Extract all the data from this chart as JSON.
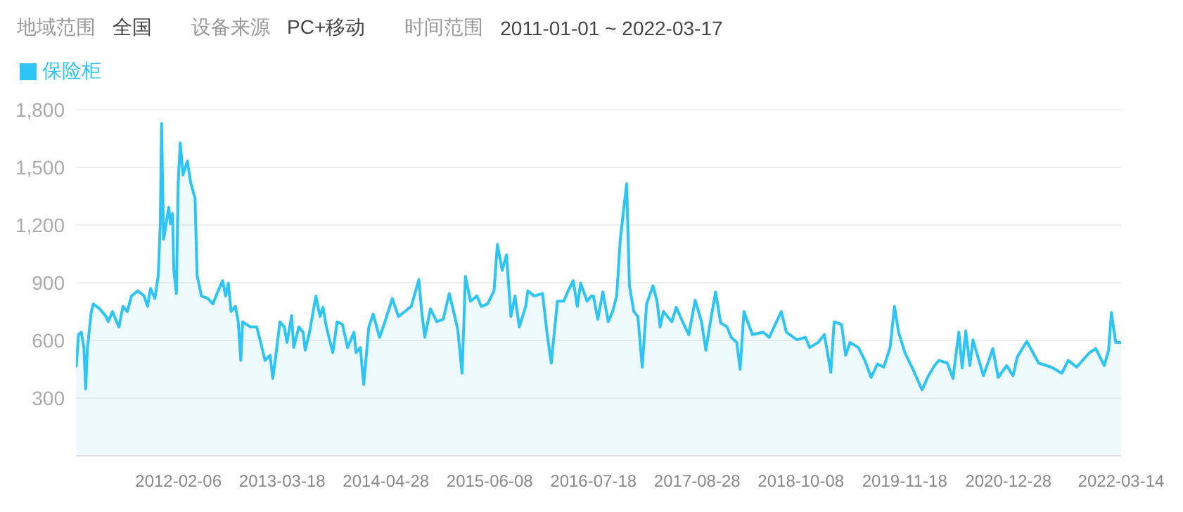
{
  "chart_data": {
    "type": "area",
    "annotations": [
      "地域范围",
      "全国",
      "设备来源",
      "PC+移动",
      "时间范围",
      "2011-01-01 ~ 2022-03-17"
    ],
    "x": [
      "2011-01-02",
      "2011-01-11",
      "2011-01-22",
      "2011-02-01",
      "2011-02-08",
      "2011-02-15",
      "2011-03-02",
      "2011-03-10",
      "2011-04-04",
      "2011-04-29",
      "2011-05-07",
      "2011-05-24",
      "2011-06-18",
      "2011-07-04",
      "2011-07-21",
      "2011-08-06",
      "2011-08-31",
      "2011-09-25",
      "2011-10-08",
      "2011-10-20",
      "2011-11-06",
      "2011-11-19",
      "2011-11-27",
      "2011-12-02",
      "2011-12-10",
      "2011-12-30",
      "2012-01-06",
      "2012-01-14",
      "2012-01-19",
      "2012-01-29",
      "2012-02-05",
      "2012-02-13",
      "2012-02-24",
      "2012-03-12",
      "2012-03-25",
      "2012-04-11",
      "2012-04-19",
      "2012-05-06",
      "2012-05-31",
      "2012-06-20",
      "2012-07-06",
      "2012-07-28",
      "2012-08-09",
      "2012-08-19",
      "2012-08-30",
      "2012-09-16",
      "2012-09-27",
      "2012-10-07",
      "2012-10-14",
      "2012-11-13",
      "2012-12-08",
      "2012-12-24",
      "2013-01-10",
      "2013-01-30",
      "2013-02-09",
      "2013-02-20",
      "2013-03-09",
      "2013-03-26",
      "2013-04-06",
      "2013-04-24",
      "2013-05-02",
      "2013-05-22",
      "2013-06-08",
      "2013-06-16",
      "2013-07-03",
      "2013-07-28",
      "2013-08-13",
      "2013-08-25",
      "2013-09-07",
      "2013-10-02",
      "2013-10-19",
      "2013-11-09",
      "2013-11-29",
      "2013-12-24",
      "2014-01-01",
      "2014-01-18",
      "2014-01-31",
      "2014-02-20",
      "2014-03-09",
      "2014-04-03",
      "2014-04-24",
      "2014-05-23",
      "2014-06-16",
      "2014-07-11",
      "2014-08-05",
      "2014-09-04",
      "2014-09-15",
      "2014-09-27",
      "2014-10-19",
      "2014-11-13",
      "2014-12-08",
      "2015-01-01",
      "2015-01-18",
      "2015-02-03",
      "2015-02-20",
      "2015-03-05",
      "2015-03-25",
      "2015-04-19",
      "2015-05-06",
      "2015-05-31",
      "2015-06-25",
      "2015-07-08",
      "2015-07-27",
      "2015-08-13",
      "2015-08-30",
      "2015-09-15",
      "2015-10-02",
      "2015-10-27",
      "2015-11-04",
      "2015-11-29",
      "2016-01-01",
      "2016-01-18",
      "2016-02-04",
      "2016-02-28",
      "2016-03-24",
      "2016-04-10",
      "2016-04-30",
      "2016-05-16",
      "2016-05-29",
      "2016-06-23",
      "2016-07-10",
      "2016-07-18",
      "2016-08-04",
      "2016-08-24",
      "2016-09-14",
      "2016-10-01",
      "2016-10-17",
      "2016-10-31",
      "2016-11-25",
      "2016-12-06",
      "2016-12-23",
      "2017-01-08",
      "2017-01-25",
      "2017-02-11",
      "2017-03-08",
      "2017-03-24",
      "2017-04-05",
      "2017-04-18",
      "2017-05-21",
      "2017-06-07",
      "2017-07-02",
      "2017-07-26",
      "2017-08-20",
      "2017-09-14",
      "2017-10-01",
      "2017-10-18",
      "2017-11-08",
      "2017-11-28",
      "2017-12-23",
      "2018-01-08",
      "2018-01-30",
      "2018-02-12",
      "2018-02-27",
      "2018-04-01",
      "2018-05-13",
      "2018-06-06",
      "2018-07-23",
      "2018-08-12",
      "2018-09-22",
      "2018-10-26",
      "2018-11-11",
      "2018-12-14",
      "2019-01-08",
      "2019-02-02",
      "2019-02-15",
      "2019-03-16",
      "2019-04-01",
      "2019-04-18",
      "2019-05-21",
      "2019-06-15",
      "2019-07-10",
      "2019-08-03",
      "2019-08-28",
      "2019-09-22",
      "2019-10-09",
      "2019-10-25",
      "2019-11-19",
      "2019-12-23",
      "2020-01-25",
      "2020-02-19",
      "2020-03-14",
      "2020-03-31",
      "2020-05-03",
      "2020-05-25",
      "2020-06-17",
      "2020-06-30",
      "2020-07-14",
      "2020-07-30",
      "2020-08-11",
      "2020-09-21",
      "2020-10-28",
      "2020-11-18",
      "2020-12-21",
      "2021-01-15",
      "2021-02-01",
      "2021-03-10",
      "2021-04-25",
      "2021-06-14",
      "2021-07-25",
      "2021-08-19",
      "2021-09-21",
      "2021-11-10",
      "2021-12-05",
      "2022-01-07",
      "2022-01-24",
      "2022-02-04",
      "2022-02-21",
      "2022-03-14"
    ],
    "series": [
      {
        "name": "保险柜",
        "color": "#2ec4f5",
        "values": [
          461,
          630,
          643,
          563,
          348,
          563,
          750,
          790,
          764,
          724,
          697,
          750,
          670,
          777,
          750,
          831,
          858,
          831,
          777,
          871,
          818,
          938,
          1206,
          1729,
          1126,
          1292,
          1206,
          1260,
          965,
          844,
          1421,
          1627,
          1461,
          1533,
          1421,
          1340,
          938,
          831,
          818,
          790,
          844,
          911,
          831,
          898,
          750,
          777,
          697,
          496,
          697,
          670,
          670,
          589,
          496,
          523,
          402,
          509,
          697,
          670,
          589,
          729,
          563,
          670,
          643,
          549,
          643,
          831,
          724,
          772,
          670,
          536,
          697,
          683,
          563,
          643,
          536,
          563,
          370,
          670,
          737,
          616,
          697,
          818,
          724,
          750,
          777,
          917,
          750,
          616,
          764,
          697,
          710,
          844,
          750,
          657,
          429,
          933,
          804,
          831,
          777,
          790,
          858,
          1099,
          965,
          1045,
          724,
          831,
          670,
          777,
          858,
          831,
          844,
          643,
          482,
          804,
          804,
          858,
          911,
          777,
          898,
          804,
          831,
          831,
          710,
          852,
          697,
          750,
          831,
          1126,
          1415,
          884,
          750,
          724,
          461,
          790,
          884,
          804,
          670,
          750,
          697,
          772,
          697,
          630,
          809,
          697,
          549,
          691,
          852,
          691,
          670,
          616,
          589,
          450,
          750,
          630,
          643,
          616,
          750,
          643,
          603,
          616,
          563,
          589,
          630,
          434,
          697,
          683,
          523,
          589,
          563,
          496,
          407,
          477,
          461,
          563,
          777,
          643,
          536,
          442,
          343,
          416,
          469,
          496,
          482,
          402,
          643,
          456,
          649,
          469,
          603,
          416,
          557,
          407,
          469,
          416,
          515,
          595,
          482,
          461,
          429,
          496,
          461,
          536,
          557,
          469,
          549,
          745,
          589,
          589
        ]
      }
    ],
    "xlim": [
      "2011-01-01",
      "2022-03-14"
    ],
    "xticks": [
      "2012-02-06",
      "2013-03-18",
      "2014-04-28",
      "2015-06-08",
      "2016-07-18",
      "2017-08-28",
      "2018-10-08",
      "2019-11-18",
      "2020-12-28",
      "2022-03-14"
    ],
    "ylim": [
      0,
      1800
    ],
    "yticks": [
      300,
      600,
      900,
      {
        "value": 1200,
        "label": "1,200"
      },
      {
        "value": 1500,
        "label": "1,500"
      },
      {
        "value": 1800,
        "label": "1,800"
      }
    ],
    "grid": "y",
    "legend": "top left"
  }
}
